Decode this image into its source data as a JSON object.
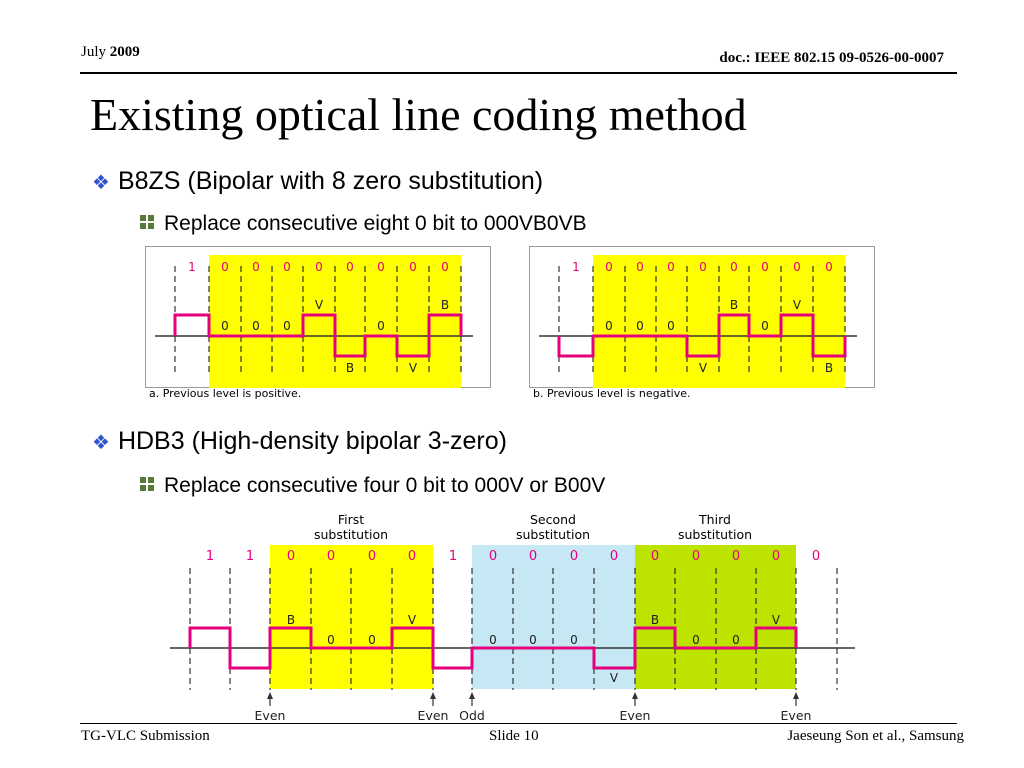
{
  "header": {
    "month": "July",
    "year": "2009",
    "doc": "doc.: IEEE 802.15 09-0526-00-0007"
  },
  "title": "Existing optical line coding method",
  "b8zs": {
    "heading": "B8ZS (Bipolar with 8 zero substitution)",
    "sub": "Replace consecutive eight 0 bit to 000VB0VB",
    "diagram_a": {
      "top_bits": [
        "1",
        "0",
        "0",
        "0",
        "0",
        "0",
        "0",
        "0",
        "0"
      ],
      "pulse_labels": [
        {
          "text": "0",
          "pos": "mid"
        },
        {
          "text": "0",
          "pos": "mid"
        },
        {
          "text": "0",
          "pos": "mid"
        },
        {
          "text": "V",
          "pos": "top"
        },
        {
          "text": "B",
          "pos": "bottom"
        },
        {
          "text": "0",
          "pos": "mid"
        },
        {
          "text": "V",
          "pos": "bottom"
        },
        {
          "text": "B",
          "pos": "top"
        }
      ],
      "caption": "a. Previous level is positive."
    },
    "diagram_b": {
      "top_bits": [
        "1",
        "0",
        "0",
        "0",
        "0",
        "0",
        "0",
        "0",
        "0"
      ],
      "pulse_labels": [
        {
          "text": "0",
          "pos": "mid"
        },
        {
          "text": "0",
          "pos": "mid"
        },
        {
          "text": "0",
          "pos": "mid"
        },
        {
          "text": "V",
          "pos": "bottom"
        },
        {
          "text": "B",
          "pos": "top"
        },
        {
          "text": "0",
          "pos": "mid"
        },
        {
          "text": "V",
          "pos": "top"
        },
        {
          "text": "B",
          "pos": "bottom"
        }
      ],
      "caption": "b. Previous level is negative."
    }
  },
  "hdb3": {
    "heading": "HDB3 (High-density bipolar 3-zero)",
    "sub": "Replace consecutive four 0 bit to 000V or B00V",
    "region_titles": [
      {
        "line1": "First",
        "line2": "substitution"
      },
      {
        "line1": "Second",
        "line2": "substitution"
      },
      {
        "line1": "Third",
        "line2": "substitution"
      }
    ],
    "top_bits": [
      "1",
      "1",
      "0",
      "0",
      "0",
      "0",
      "1",
      "0",
      "0",
      "0",
      "0",
      "0",
      "0",
      "0",
      "0",
      "0"
    ],
    "pulse_labels": [
      "B",
      "0",
      "0",
      "V",
      "0",
      "0",
      "0",
      "V",
      "B",
      "0",
      "0",
      "V"
    ],
    "parity_labels": [
      "Even",
      "Even",
      "Odd",
      "Even",
      "Even"
    ],
    "colors": {
      "yellow": "#ffff00",
      "blue": "#c5e8f4",
      "green": "#bde400",
      "signal": "#e6007e",
      "bits": "#e6007e"
    }
  },
  "footer": {
    "left": "TG-VLC Submission",
    "center": "Slide 10",
    "right": "Jaeseung Son et al., Samsung"
  }
}
